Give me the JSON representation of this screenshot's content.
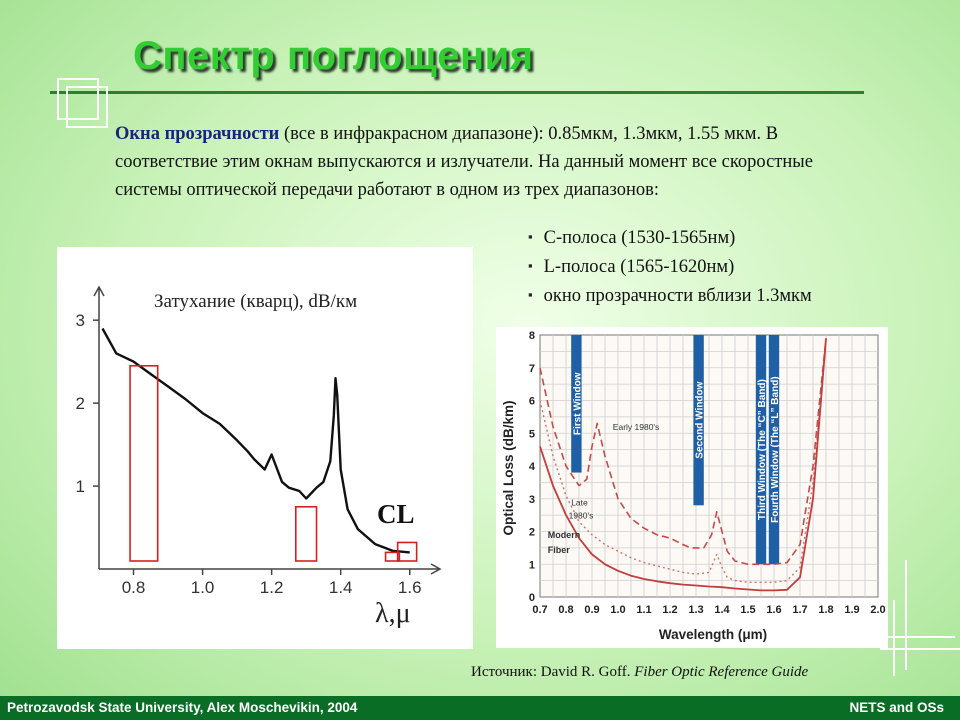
{
  "slide": {
    "title": "Спектр поглощения",
    "intro_highlight": "Окна прозрачности",
    "intro_rest": " (все в инфракрасном диапазоне): 0.85мкм, 1.3мкм, 1.55 мкм. В соответствие этим окнам выпускаются и излучатели. На данный момент все скоростные системы оптической передачи работают в одном из трех диапазонов:",
    "bands": [
      "C-полоса (1530-1565нм)",
      "L-полоса (1565-1620нм)",
      "окно прозрачности вблизи 1.3мкм"
    ],
    "source_prefix": "Источник: David R. Goff. ",
    "source_title": "Fiber Optic Reference Guide",
    "footer_left": "Petrozavodsk State University, Alex Moschevikin, 2004",
    "footer_right": "NETS and OSs",
    "title_color": "#33cc33",
    "footer_color": "#0a6d25"
  },
  "chart_data": [
    {
      "type": "line",
      "title": "Затухание (кварц), dB/км",
      "xlabel": "λ,μ",
      "ylabel": "",
      "x_ticks": [
        "0.8",
        "1.0",
        "1.2",
        "1.4",
        "1.6"
      ],
      "y_ticks": [
        "1",
        "2",
        "3"
      ],
      "xlim": [
        0.7,
        1.65
      ],
      "ylim": [
        0,
        3.4
      ],
      "annotation": "CL",
      "series": [
        {
          "x": [
            0.71,
            0.75,
            0.8,
            0.85,
            0.9,
            0.95,
            1.0,
            1.05,
            1.1,
            1.13,
            1.15,
            1.18,
            1.2,
            1.23,
            1.25,
            1.28,
            1.3,
            1.33,
            1.35,
            1.37,
            1.38,
            1.385,
            1.39,
            1.4,
            1.42,
            1.45,
            1.5,
            1.55,
            1.6
          ],
          "y": [
            2.9,
            2.6,
            2.5,
            2.35,
            2.2,
            2.05,
            1.88,
            1.75,
            1.55,
            1.42,
            1.32,
            1.2,
            1.38,
            1.05,
            0.98,
            0.94,
            0.85,
            0.98,
            1.05,
            1.3,
            1.85,
            2.3,
            2.1,
            1.2,
            0.72,
            0.48,
            0.3,
            0.22,
            0.2
          ]
        }
      ],
      "windows": [
        [
          0.79,
          0.87
        ],
        [
          1.27,
          1.33
        ],
        [
          1.53,
          1.57
        ],
        [
          1.565,
          1.62
        ]
      ]
    },
    {
      "type": "line",
      "xlabel": "Wavelength (μm)",
      "ylabel": "Optical Loss (dB/km)",
      "x_ticks": [
        "0.7",
        "0.8",
        "0.9",
        "1.0",
        "1.1",
        "1.2",
        "1.3",
        "1.4",
        "1.5",
        "1.6",
        "1.7",
        "1.8",
        "1.9",
        "2.0"
      ],
      "y_ticks": [
        "0",
        "1",
        "2",
        "3",
        "4",
        "5",
        "6",
        "7",
        "8"
      ],
      "xlim": [
        0.7,
        2.0
      ],
      "ylim": [
        0,
        8
      ],
      "window_labels": [
        "First Window",
        "Second Window",
        "Third Window (The “C” Band)",
        "Fourth Window (The “L” Band)"
      ],
      "series": [
        {
          "name": "Early 1980's",
          "x": [
            0.7,
            0.75,
            0.8,
            0.85,
            0.88,
            0.9,
            0.92,
            0.95,
            1.0,
            1.05,
            1.1,
            1.15,
            1.2,
            1.25,
            1.28,
            1.3,
            1.33,
            1.36,
            1.38,
            1.4,
            1.42,
            1.45,
            1.5,
            1.55,
            1.6,
            1.65,
            1.7,
            1.75,
            1.8
          ],
          "y": [
            7.0,
            5.2,
            4.0,
            3.4,
            3.6,
            4.6,
            5.3,
            4.3,
            3.0,
            2.4,
            2.1,
            1.9,
            1.8,
            1.6,
            1.5,
            1.5,
            1.5,
            1.9,
            2.6,
            2.0,
            1.4,
            1.1,
            1.0,
            1.0,
            1.0,
            1.05,
            1.6,
            4.0,
            7.9
          ]
        },
        {
          "name": "Late 1980's",
          "x": [
            0.7,
            0.75,
            0.8,
            0.85,
            0.9,
            0.95,
            1.0,
            1.05,
            1.1,
            1.15,
            1.2,
            1.25,
            1.3,
            1.35,
            1.38,
            1.4,
            1.42,
            1.45,
            1.5,
            1.55,
            1.6,
            1.65,
            1.7,
            1.75,
            1.8
          ],
          "y": [
            6.0,
            4.3,
            3.1,
            2.3,
            1.9,
            1.6,
            1.4,
            1.2,
            1.05,
            0.95,
            0.85,
            0.75,
            0.7,
            0.75,
            1.3,
            0.9,
            0.6,
            0.5,
            0.45,
            0.45,
            0.45,
            0.5,
            0.9,
            3.5,
            7.9
          ]
        },
        {
          "name": "Modern Fiber",
          "x": [
            0.7,
            0.75,
            0.8,
            0.85,
            0.9,
            0.95,
            1.0,
            1.05,
            1.1,
            1.15,
            1.2,
            1.25,
            1.3,
            1.35,
            1.4,
            1.45,
            1.5,
            1.55,
            1.6,
            1.65,
            1.7,
            1.75,
            1.8
          ],
          "y": [
            4.6,
            3.4,
            2.5,
            1.8,
            1.3,
            1.0,
            0.8,
            0.65,
            0.55,
            0.48,
            0.42,
            0.38,
            0.35,
            0.32,
            0.3,
            0.26,
            0.23,
            0.2,
            0.2,
            0.22,
            0.6,
            3.0,
            7.9
          ]
        }
      ]
    }
  ]
}
